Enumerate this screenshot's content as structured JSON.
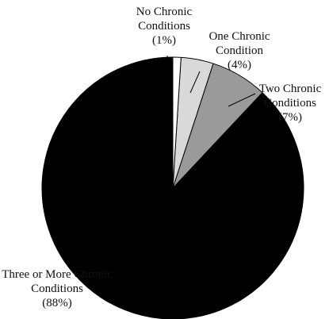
{
  "chart_data": {
    "type": "pie",
    "categories": [
      "No Chronic Conditions",
      "One Chronic Condition",
      "Two Chronic Conditions",
      "Three or More Chronic Conditions"
    ],
    "values": [
      1,
      4,
      7,
      88
    ],
    "value_labels": [
      "(1%)",
      "(4%)",
      "(7%)",
      "(88%)"
    ],
    "colors": [
      "#ffffff",
      "#d9d9d9",
      "#9a9a9a",
      "#000000"
    ]
  }
}
